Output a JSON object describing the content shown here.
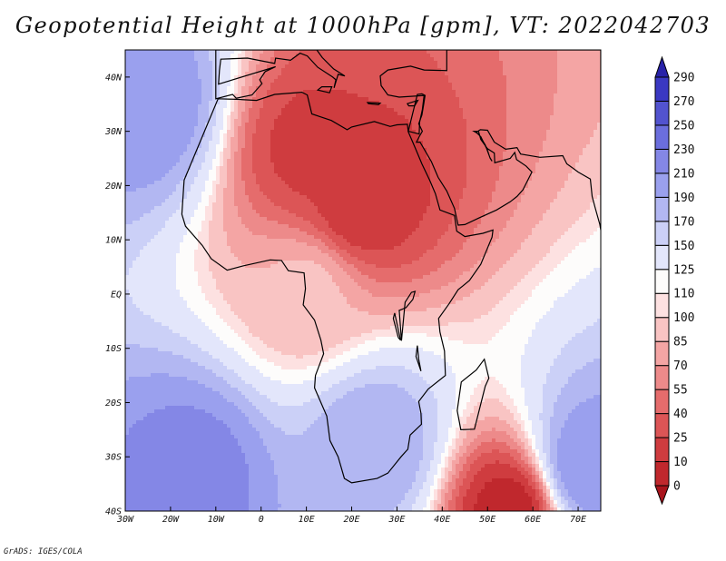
{
  "title": "Geopotential Height at 1000hPa [gpm], VT: 2022042703",
  "credit": "GrADS: IGES/COLA",
  "chart_data": {
    "type": "heatmap",
    "title": "Geopotential Height at 1000hPa [gpm], VT: 2022042703",
    "variable": "Geopotential Height",
    "level": "1000hPa",
    "units": "gpm",
    "valid_time": "2022042703",
    "xlim": [
      -30,
      75
    ],
    "ylim": [
      -40,
      45
    ],
    "x_ticks": [
      {
        "value": -30,
        "label": "30W"
      },
      {
        "value": -20,
        "label": "20W"
      },
      {
        "value": -10,
        "label": "10W"
      },
      {
        "value": 0,
        "label": "0"
      },
      {
        "value": 10,
        "label": "10E"
      },
      {
        "value": 20,
        "label": "20E"
      },
      {
        "value": 30,
        "label": "30E"
      },
      {
        "value": 40,
        "label": "40E"
      },
      {
        "value": 50,
        "label": "50E"
      },
      {
        "value": 60,
        "label": "60E"
      },
      {
        "value": 70,
        "label": "70E"
      }
    ],
    "y_ticks": [
      {
        "value": 40,
        "label": "40N"
      },
      {
        "value": 30,
        "label": "30N"
      },
      {
        "value": 20,
        "label": "20N"
      },
      {
        "value": 10,
        "label": "10N"
      },
      {
        "value": 0,
        "label": "EQ"
      },
      {
        "value": -10,
        "label": "10S"
      },
      {
        "value": -20,
        "label": "20S"
      },
      {
        "value": -30,
        "label": "30S"
      },
      {
        "value": -40,
        "label": "40S"
      }
    ],
    "colorbar": {
      "levels": [
        0,
        10,
        25,
        40,
        55,
        70,
        85,
        100,
        110,
        125,
        150,
        170,
        190,
        210,
        230,
        250,
        270,
        290
      ],
      "labels": [
        "0",
        "10",
        "25",
        "40",
        "55",
        "70",
        "85",
        "100",
        "110",
        "125",
        "150",
        "170",
        "190",
        "210",
        "230",
        "250",
        "270",
        "290"
      ],
      "colors": [
        "#a8141c",
        "#c0282d",
        "#cf3c3f",
        "#dc5556",
        "#e56c6c",
        "#ed8a8a",
        "#f4a5a4",
        "#f9c4c3",
        "#fde1e1",
        "#fdfcfb",
        "#e3e6fb",
        "#cbd0f7",
        "#b2b7f2",
        "#9aa0ee",
        "#8487e6",
        "#6b6edd",
        "#5253cf",
        "#3a38c2",
        "#2822a8"
      ]
    },
    "approx_field_features": [
      {
        "name": "Saharan heat low",
        "lon": 10,
        "lat": 27,
        "value": 20
      },
      {
        "name": "Sahel low",
        "lon": 22,
        "lat": 17,
        "value": 10
      },
      {
        "name": "South Indian Ocean low",
        "lon": 55,
        "lat": -40,
        "value": 0
      },
      {
        "name": "Azores high",
        "lon": -25,
        "lat": 35,
        "value": 210
      },
      {
        "name": "South Atlantic high",
        "lon": -15,
        "lat": -33,
        "value": 220
      },
      {
        "name": "South African high",
        "lon": 25,
        "lat": -28,
        "value": 190
      },
      {
        "name": "Indian Ocean high",
        "lon": 72,
        "lat": -32,
        "value": 210
      },
      {
        "name": "Equatorial band",
        "lon": 10,
        "lat": 0,
        "value": 90
      }
    ]
  }
}
